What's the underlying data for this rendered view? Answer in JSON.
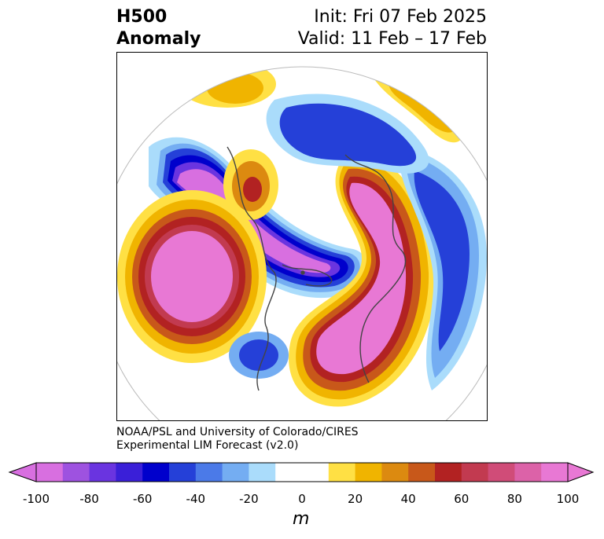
{
  "header": {
    "title_line1": "H500",
    "title_line2": "Anomaly",
    "init_text": "Init: Fri 07 Feb 2025",
    "valid_text": "Valid: 11 Feb – 17 Feb"
  },
  "credit": {
    "line1": "NOAA/PSL and University of Colorado/CIRES",
    "line2": "Experimental LIM Forecast (v2.0)"
  },
  "colorbar": {
    "unit": "m",
    "ticks": [
      "-100",
      "-80",
      "-60",
      "-40",
      "-20",
      "0",
      "20",
      "40",
      "60",
      "80",
      "100"
    ],
    "colors": [
      "#d86fe0",
      "#9e52e0",
      "#6a34e0",
      "#3a1fd8",
      "#0000cc",
      "#2540d8",
      "#4b7ae8",
      "#74adf2",
      "#aadcfb",
      "#ffffff",
      "#ffffff",
      "#ffe044",
      "#f0b400",
      "#dc8a10",
      "#c8581a",
      "#b22222",
      "#c23a50",
      "#d04c78",
      "#dc62a8",
      "#e878d4"
    ]
  }
}
